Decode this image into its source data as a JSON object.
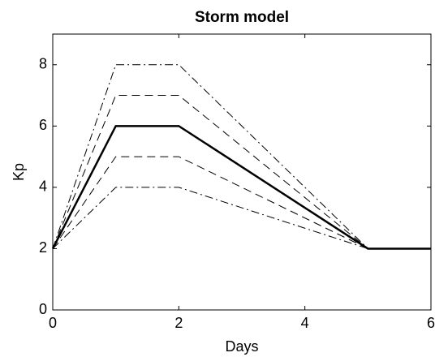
{
  "chart_data": {
    "type": "line",
    "title": "Storm model",
    "xlabel": "Days",
    "ylabel": "Kp",
    "x": [
      0,
      1,
      2,
      5,
      6
    ],
    "series": [
      {
        "color": "#000000",
        "dash": "dashdot",
        "values": [
          2,
          8,
          8,
          2,
          null
        ]
      },
      {
        "color": "#000000",
        "dash": "dashed",
        "values": [
          2,
          7,
          7,
          2,
          null
        ]
      },
      {
        "color": "#000000",
        "dash": "solid",
        "width": 2.5,
        "values": [
          2,
          6,
          6,
          2,
          2
        ]
      },
      {
        "color": "#000000",
        "dash": "dashed",
        "values": [
          2,
          5,
          5,
          2,
          null
        ]
      },
      {
        "color": "#000000",
        "dash": "dashdot",
        "values": [
          2,
          4,
          4,
          2,
          null
        ]
      }
    ],
    "xlim": [
      0,
      6
    ],
    "ylim": [
      0,
      9
    ],
    "xticks": [
      0,
      2,
      4,
      6
    ],
    "yticks": [
      0,
      2,
      4,
      6,
      8
    ],
    "grid": false
  }
}
